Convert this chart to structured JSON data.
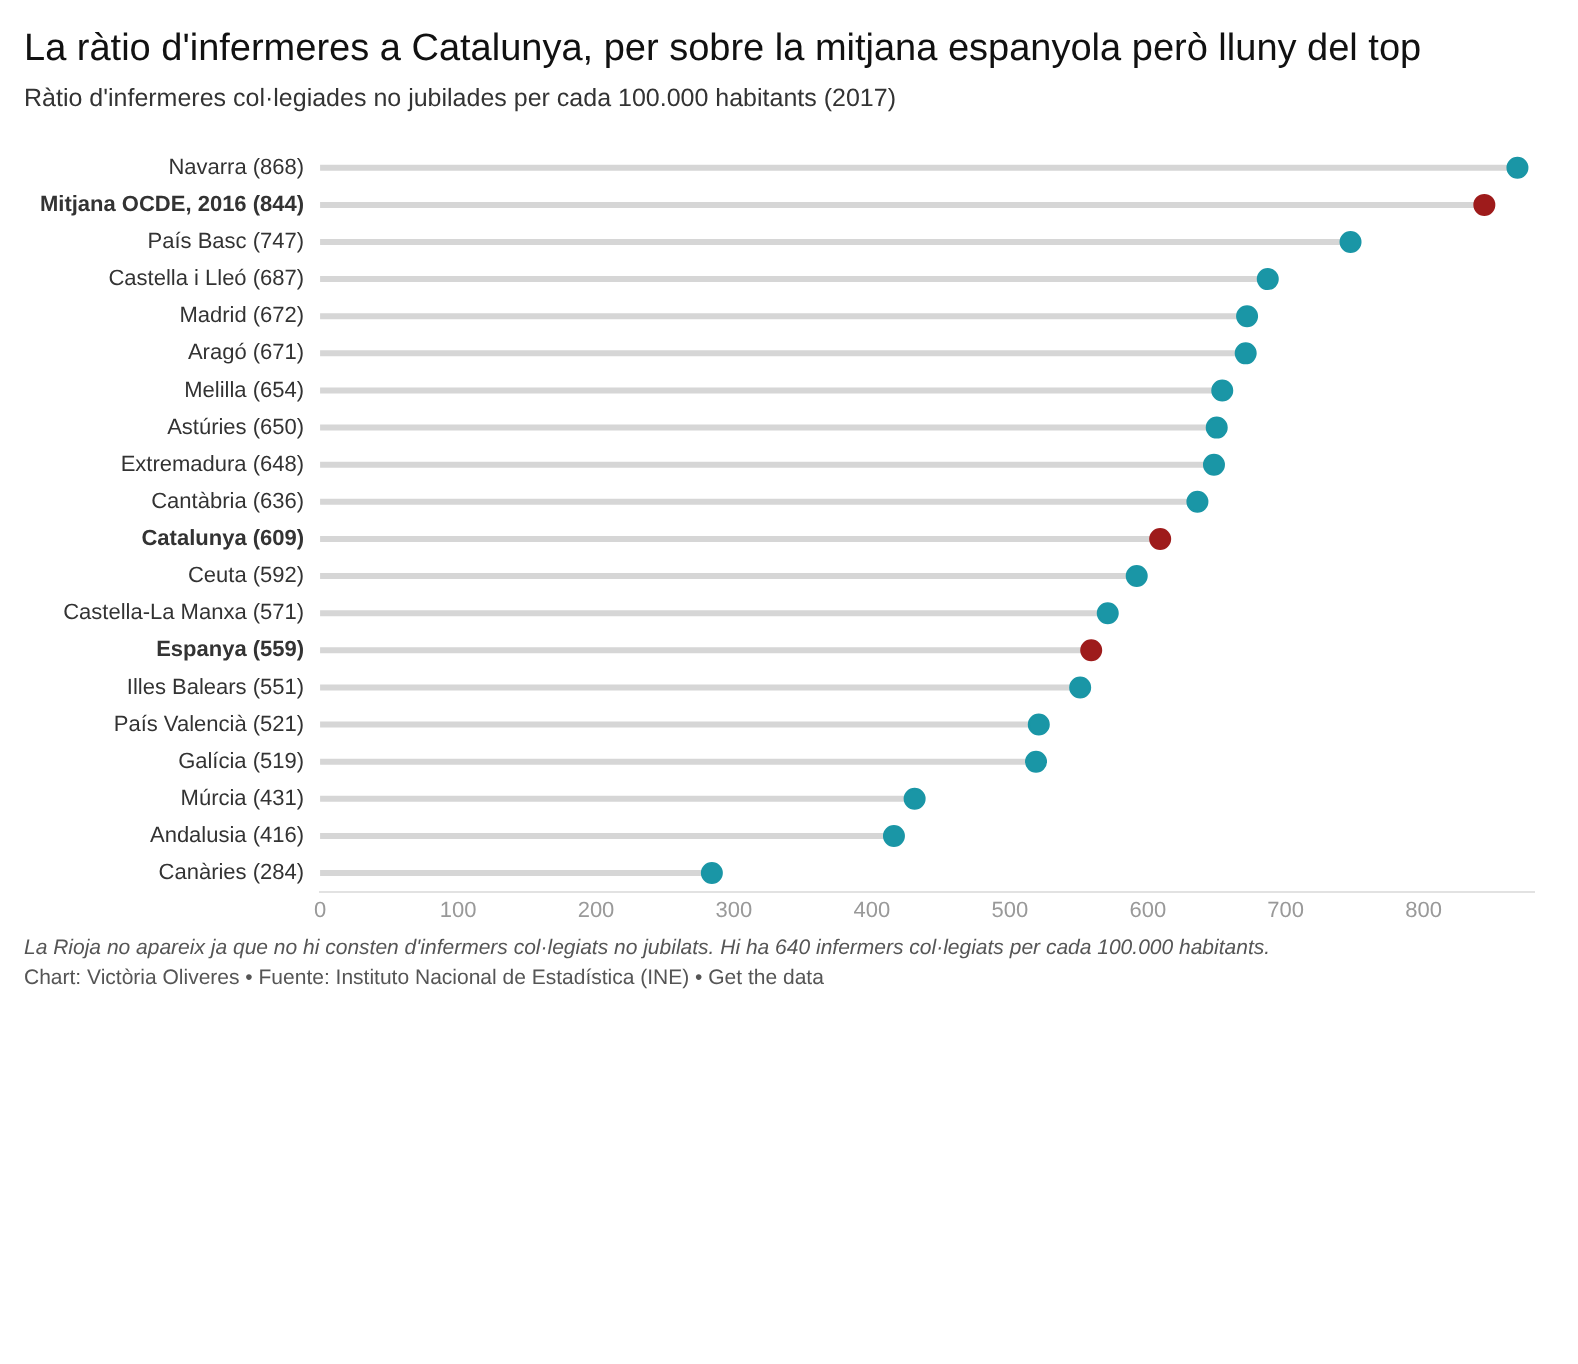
{
  "chart_data": {
    "type": "lollipop",
    "title": "La ràtio d'infermeres a Catalunya, per sobre la mitjana espanyola però lluny del top",
    "subtitle": "Ràtio d'infermeres col·legiades no jubilades per cada 100.000 habitants (2017)",
    "orientation": "horizontal",
    "categories": [
      "Navarra (868)",
      "Mitjana OCDE, 2016 (844)",
      "País Basc (747)",
      "Castella i Lleó (687)",
      "Madrid (672)",
      "Aragó (671)",
      "Melilla (654)",
      "Astúries (650)",
      "Extremadura (648)",
      "Cantàbria (636)",
      "Catalunya (609)",
      "Ceuta (592)",
      "Castella-La Manxa (571)",
      "Espanya (559)",
      "Illes Balears (551)",
      "País Valencià (521)",
      "Galícia (519)",
      "Múrcia (431)",
      "Andalusia (416)",
      "Canàries (284)"
    ],
    "values": [
      868,
      844,
      747,
      687,
      672,
      671,
      654,
      650,
      648,
      636,
      609,
      592,
      571,
      559,
      551,
      521,
      519,
      431,
      416,
      284
    ],
    "colors": [
      "#1a96a6",
      "#9e1b1b",
      "#1a96a6",
      "#1a96a6",
      "#1a96a6",
      "#1a96a6",
      "#1a96a6",
      "#1a96a6",
      "#1a96a6",
      "#1a96a6",
      "#9e1b1b",
      "#1a96a6",
      "#1a96a6",
      "#9e1b1b",
      "#1a96a6",
      "#1a96a6",
      "#1a96a6",
      "#1a96a6",
      "#1a96a6",
      "#1a96a6"
    ],
    "xlim": [
      0,
      880
    ],
    "xticks": [
      0,
      100,
      200,
      300,
      400,
      500,
      600,
      700,
      800
    ],
    "grid": false,
    "legend": false,
    "marker": "circle",
    "annotations": [
      "La Rioja no apareix ja que no hi consten d'infermers col·legiats no jubilats. Hi ha 640 infermers col·legiats per cada 100.000 habitants.",
      "Chart: Victòria Oliveres • Fuente: Instituto Nacional de Estadística (INE) • Get the data"
    ]
  }
}
